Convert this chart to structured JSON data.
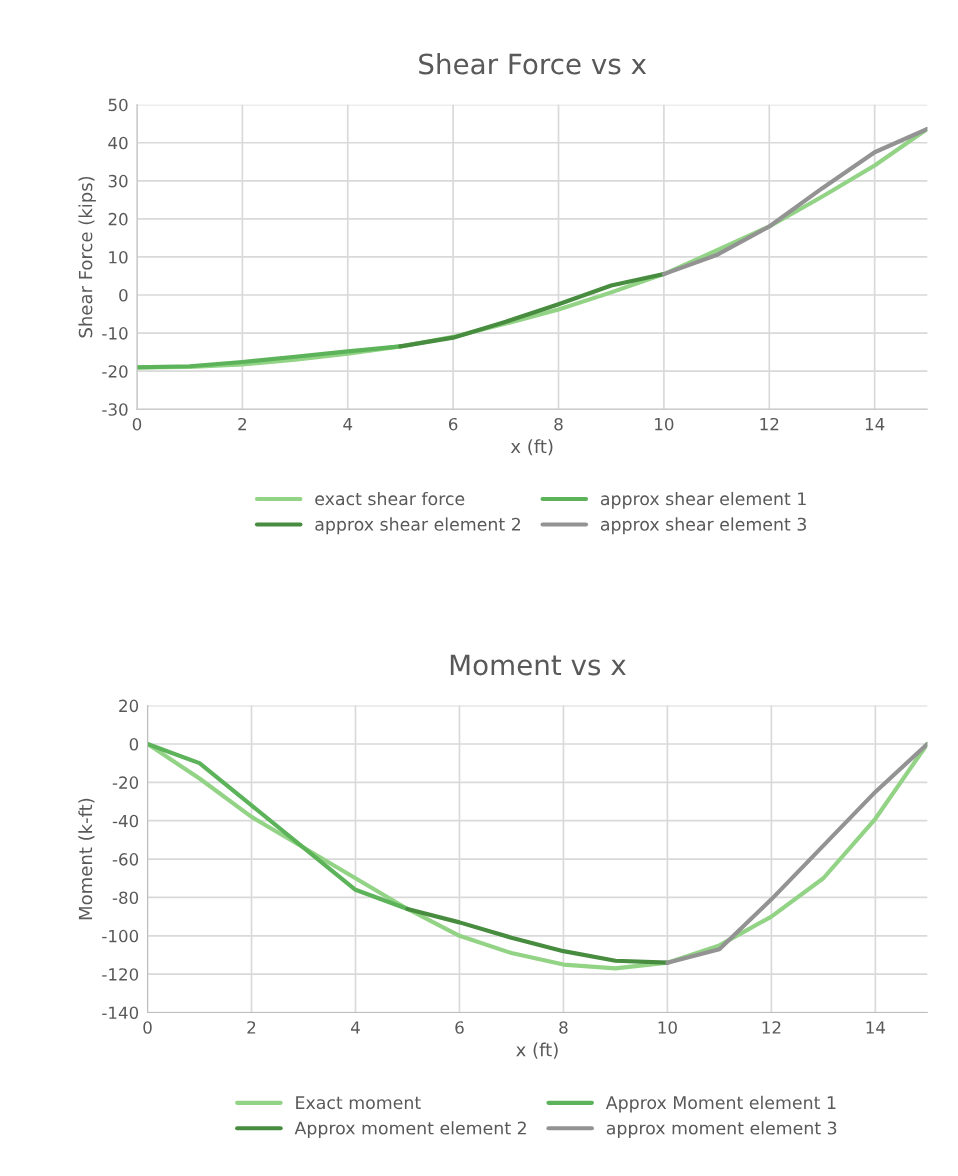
{
  "chart_data": [
    {
      "type": "line",
      "title": "Shear Force vs x",
      "xlabel": "x (ft)",
      "ylabel": "Shear Force (kips)",
      "xlim": [
        0,
        15
      ],
      "xticks": [
        0,
        2,
        4,
        6,
        8,
        10,
        12,
        14
      ],
      "ylim": [
        -30,
        50
      ],
      "yticks": [
        -30,
        -20,
        -10,
        0,
        10,
        20,
        30,
        40,
        50
      ],
      "grid": true,
      "legend": "bottom",
      "marker": "none",
      "line_style": "solid",
      "series": [
        {
          "name": "exact shear force",
          "color": "#92d385",
          "x": [
            0,
            1,
            2,
            3,
            4,
            5,
            6,
            7,
            8,
            9,
            10,
            11,
            12,
            13,
            14,
            15
          ],
          "values": [
            -19,
            -18.9,
            -18.2,
            -17,
            -15.4,
            -13.5,
            -11,
            -7.5,
            -3.8,
            0.7,
            5.5,
            11.7,
            18,
            25.8,
            34,
            43.6
          ]
        },
        {
          "name": "approx shear element 1",
          "color": "#5cb35a",
          "x": [
            0,
            1,
            2,
            3,
            4,
            5
          ],
          "values": [
            -19,
            -18.7,
            -17.6,
            -16.2,
            -14.8,
            -13.5
          ]
        },
        {
          "name": "approx shear element 2",
          "color": "#478c3f",
          "x": [
            5,
            6,
            7,
            8,
            9,
            10
          ],
          "values": [
            -13.5,
            -11.2,
            -7,
            -2.4,
            2.5,
            5.5
          ]
        },
        {
          "name": "approx shear element 3",
          "color": "#939393",
          "x": [
            10,
            11,
            12,
            13,
            14,
            15
          ],
          "values": [
            5.5,
            10.5,
            18,
            28,
            37.5,
            43.6
          ]
        }
      ]
    },
    {
      "type": "line",
      "title": "Moment vs x",
      "xlabel": "x (ft)",
      "ylabel": "Moment (k-ft)",
      "xlim": [
        0,
        15
      ],
      "xticks": [
        0,
        2,
        4,
        6,
        8,
        10,
        12,
        14
      ],
      "ylim": [
        -140,
        20
      ],
      "yticks": [
        -140,
        -120,
        -100,
        -80,
        -60,
        -40,
        -20,
        0,
        20
      ],
      "grid": true,
      "legend": "bottom",
      "marker": "none",
      "line_style": "solid",
      "series": [
        {
          "name": "Exact moment",
          "color": "#92d385",
          "x": [
            0,
            1,
            2,
            3,
            4,
            5,
            6,
            7,
            8,
            9,
            10,
            11,
            12,
            13,
            14,
            15
          ],
          "values": [
            0,
            -18,
            -38,
            -54,
            -70,
            -86,
            -100,
            -109,
            -115,
            -117,
            -114,
            -105,
            -90,
            -70,
            -39,
            0
          ]
        },
        {
          "name": "Approx Moment element 1",
          "color": "#5cb35a",
          "x": [
            0,
            1,
            2,
            3,
            4,
            5
          ],
          "values": [
            0,
            -10,
            -32,
            -54,
            -76,
            -86
          ]
        },
        {
          "name": "Approx moment element 2",
          "color": "#478c3f",
          "x": [
            5,
            6,
            7,
            8,
            9,
            10
          ],
          "values": [
            -86,
            -93,
            -101,
            -108,
            -113,
            -114
          ]
        },
        {
          "name": "approx moment element 3",
          "color": "#939393",
          "x": [
            10,
            11,
            12,
            13,
            14,
            15
          ],
          "values": [
            -114,
            -107,
            -81,
            -53,
            -25,
            0
          ]
        }
      ]
    }
  ]
}
